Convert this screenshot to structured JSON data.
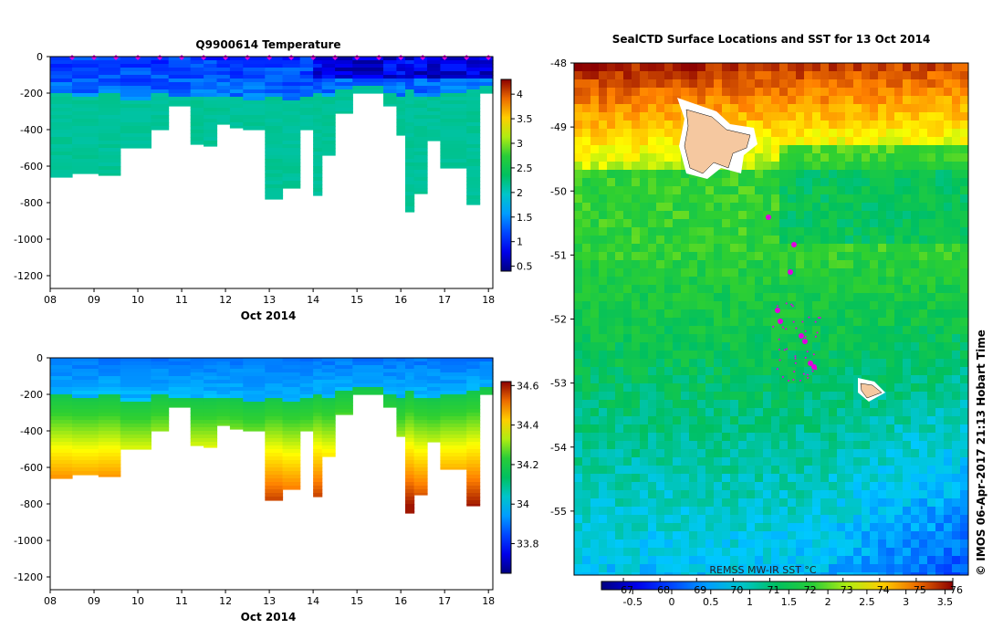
{
  "temp_panel": {
    "title": "Q9900614  Temperature",
    "xlabel": "Oct 2014",
    "x_ticks": [
      "08",
      "09",
      "10",
      "11",
      "12",
      "13",
      "14",
      "15",
      "16",
      "17",
      "18"
    ],
    "y_ticks": [
      "0",
      "-200",
      "-400",
      "-600",
      "-800",
      "-1000",
      "-1200"
    ],
    "colorbar_ticks": [
      "4",
      "3.5",
      "3",
      "2.5",
      "2",
      "1.5",
      "1",
      "0.5"
    ]
  },
  "sal_panel": {
    "title": "",
    "xlabel": "Oct 2014",
    "x_ticks": [
      "08",
      "09",
      "10",
      "11",
      "12",
      "13",
      "14",
      "15",
      "16",
      "17",
      "18"
    ],
    "y_ticks": [
      "0",
      "-200",
      "-400",
      "-600",
      "-800",
      "-1000",
      "-1200"
    ],
    "colorbar_ticks": [
      "34.6",
      "34.4",
      "34.2",
      "34",
      "33.8"
    ]
  },
  "map_panel": {
    "title": "SealCTD Surface Locations and SST for 13 Oct 2014",
    "y_ticks": [
      "-48",
      "-49",
      "-50",
      "-51",
      "-52",
      "-53",
      "-54",
      "-55"
    ],
    "source_label": "REMSS MW-IR SST °C",
    "colorbar_c_ticks": [
      "-0.5",
      "0",
      "0.5",
      "1",
      "1.5",
      "2",
      "2.5",
      "3",
      "3.5"
    ],
    "colorbar_f_ticks": [
      "67",
      "68",
      "69",
      "70",
      "71",
      "72",
      "73",
      "74",
      "75",
      "76"
    ],
    "credit": "© IMOS 06-Apr-2017 21:13 Hobart Time"
  },
  "colors": {
    "marker": "#e000e0",
    "land": "#f5c8a0"
  },
  "chart_data": [
    {
      "type": "heatmap",
      "title": "Q9900614  Temperature",
      "xlabel": "Oct 2014",
      "ylabel": "",
      "xlim": [
        8,
        18.1
      ],
      "ylim": [
        -1270,
        0
      ],
      "colorbar_range": [
        0.4,
        4.3
      ],
      "profile_day": [
        8.0,
        8.5,
        9.1,
        9.6,
        10.3,
        10.7,
        11.2,
        11.5,
        11.8,
        12.1,
        12.4,
        12.9,
        13.3,
        13.7,
        14.0,
        14.2,
        14.5,
        14.9,
        15.6,
        15.9,
        16.1,
        16.3,
        16.6,
        16.9,
        17.5,
        17.8
      ],
      "profile_max_depth": [
        -660,
        -640,
        -650,
        -500,
        -400,
        -270,
        -480,
        -490,
        -370,
        -390,
        -400,
        -780,
        -720,
        -400,
        -760,
        -540,
        -310,
        -200,
        -270,
        -430,
        -850,
        -750,
        -460,
        -610,
        -810,
        -200
      ],
      "surface_layer_bottom": [
        -220,
        -230,
        -220,
        -250,
        -220,
        -230,
        -240,
        -240,
        -230,
        -240,
        -260,
        -230,
        -250,
        -240,
        -210,
        -230,
        -200,
        -180,
        -220,
        -240,
        -200,
        -230,
        -240,
        -220,
        -200,
        -180
      ],
      "deep_value": 2.1,
      "surface_value_range": [
        0.5,
        1.6
      ]
    },
    {
      "type": "heatmap",
      "title": "",
      "xlabel": "Oct 2014",
      "ylabel": "",
      "xlim": [
        8,
        18.1
      ],
      "ylim": [
        -1270,
        0
      ],
      "colorbar_range": [
        33.65,
        34.62
      ],
      "deep_value_range": [
        34.2,
        34.6
      ],
      "surface_value_range": [
        33.8,
        34.0
      ]
    },
    {
      "type": "heatmap",
      "title": "SealCTD Surface Locations and SST for 13 Oct 2014",
      "ylabel": "",
      "ylim": [
        -56,
        -48
      ],
      "colorbar_c_range": [
        -0.9,
        3.6
      ],
      "colorbar_f_range": [
        66.4,
        76
      ],
      "sst_pattern": [
        "warm north near -48 to -49.5 (2.0 to 3.5 °C)",
        "mid band near -50 to -53 (0.5 to 1.8 °C)",
        "cold south-east near -54 to -56 (-0.8 to 0.3 °C)"
      ],
      "land": [
        "Kerguelen Islands near -49.3",
        "Heard Island near -53.1"
      ],
      "seal_locations_lat": [
        -50.9,
        -51.2,
        -51.5,
        -52.0,
        -52.1,
        -52.3,
        -52.4,
        -52.7,
        -52.8
      ]
    }
  ]
}
